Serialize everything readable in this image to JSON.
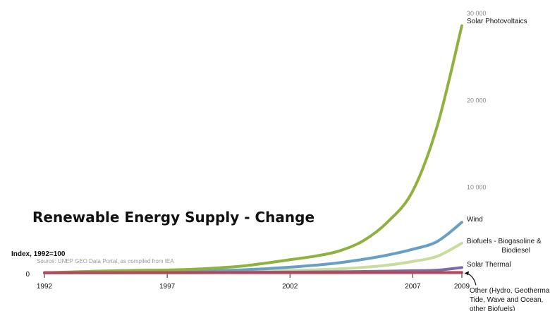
{
  "chart_data": {
    "type": "line",
    "title": "Renewable Energy Supply - Change",
    "ylabel": "Index, 1992=100",
    "source": "Source: UNEP GEO Data Portal, as compiled from IEA",
    "x": [
      1992,
      1993,
      1994,
      1995,
      1996,
      1997,
      1998,
      1999,
      2000,
      2001,
      2002,
      2003,
      2004,
      2005,
      2006,
      2007,
      2008,
      2009
    ],
    "xlim": [
      1992,
      2009
    ],
    "ylim": [
      0,
      30000
    ],
    "x_ticks": [
      "1992",
      "1997",
      "2002",
      "2007",
      "2009"
    ],
    "y_ticks": [
      "0",
      "10 000",
      "20 000",
      "30 000"
    ],
    "grid": false,
    "series": [
      {
        "name": "Solar Photovoltaics",
        "color": "#8fb23e",
        "values": [
          100,
          180,
          270,
          330,
          380,
          420,
          500,
          650,
          850,
          1200,
          1600,
          2000,
          2600,
          3800,
          6000,
          9500,
          17000,
          28500
        ]
      },
      {
        "name": "Wind",
        "color": "#6a9fc4",
        "values": [
          100,
          110,
          130,
          150,
          180,
          210,
          260,
          330,
          430,
          560,
          740,
          960,
          1250,
          1650,
          2150,
          2800,
          3700,
          5900
        ]
      },
      {
        "name_lines": [
          "Biofuels - Biogasoline &",
          "Biodiesel"
        ],
        "color": "#c8dca0",
        "values": [
          100,
          120,
          140,
          160,
          180,
          200,
          220,
          250,
          280,
          320,
          370,
          440,
          550,
          720,
          980,
          1400,
          2000,
          3500
        ]
      },
      {
        "name": "Solar Thermal",
        "color": "#7b6aa8",
        "values": [
          100,
          105,
          110,
          115,
          120,
          125,
          130,
          135,
          145,
          160,
          175,
          190,
          210,
          240,
          280,
          330,
          400,
          700
        ]
      },
      {
        "name_lines": [
          "Other (Hydro, Geothermal,",
          "Tide, Wave and Ocean,",
          "other Biofuels)"
        ],
        "color": "#b24a5a",
        "values": [
          100,
          101,
          102,
          103,
          104,
          105,
          106,
          107,
          108,
          110,
          112,
          114,
          116,
          118,
          120,
          122,
          125,
          130
        ]
      }
    ]
  }
}
